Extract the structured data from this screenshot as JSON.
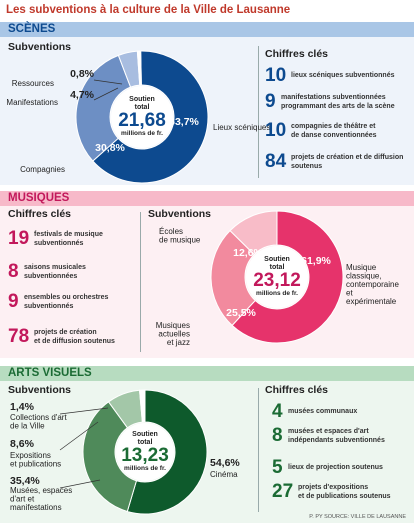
{
  "title": "Les subventions à la culture de la Ville de Lausanne",
  "source": "P. PY SOURCE: VILLE DE LAUSANNE",
  "labels": {
    "subventions": "Subventions",
    "chiffres": "Chiffres clés",
    "center_line1": "Soutien",
    "center_line2": "total",
    "unit": "millions de fr."
  },
  "colors": {
    "scenes_band": "#a9c6e6",
    "scenes_text": "#0d4a8f",
    "scenes_bg": "#eef3fa",
    "musiques_band": "#f7b9c9",
    "musiques_text": "#c2185b",
    "musiques_bg": "#fdf0f3",
    "arts_band": "#b7dcc0",
    "arts_text": "#1b6b34",
    "arts_bg": "#edf6ef"
  },
  "sections": {
    "scenes": {
      "name": "SCÈNES",
      "stats": [
        {
          "num": "10",
          "text": "lieux scéniques subventionnés"
        },
        {
          "num": "9",
          "text": "manifestations subventionnées\nprogrammant des arts de la scène"
        },
        {
          "num": "10",
          "text": "compagnies de théâtre et\nde danse conventionnées"
        },
        {
          "num": "84",
          "text": "projets de création et de diffusion\nsoutenus"
        }
      ]
    },
    "musiques": {
      "name": "MUSIQUES",
      "stats": [
        {
          "num": "19",
          "text": "festivals de musique\nsubventionnés"
        },
        {
          "num": "8",
          "text": "saisons musicales\nsubventionnées"
        },
        {
          "num": "9",
          "text": "ensembles ou orchestres\nsubventionnés"
        },
        {
          "num": "78",
          "text": "projets de création\net de diffusion soutenus"
        }
      ]
    },
    "arts": {
      "name": "ARTS VISUELS",
      "stats": [
        {
          "num": "4",
          "text": "musées communaux"
        },
        {
          "num": "8",
          "text": "musées et espaces d'art\nindépendants subventionnés"
        },
        {
          "num": "5",
          "text": "lieux de projection soutenus"
        },
        {
          "num": "27",
          "text": "projets d'expositions\net de publications soutenus"
        }
      ]
    }
  },
  "chart_data": [
    {
      "type": "pie",
      "section": "SCÈNES",
      "center_value": "21,68",
      "categories": [
        "Lieux scéniques",
        "Compagnies",
        "Manifestations",
        "Ressources"
      ],
      "values": [
        63.7,
        30.8,
        4.7,
        0.8
      ],
      "value_labels": [
        "63,7%",
        "30,8%",
        "4,7%",
        "0,8%"
      ],
      "colors": [
        "#0d4a8f",
        "#6d8fc4",
        "#a8bde0",
        "#ffffff"
      ]
    },
    {
      "type": "pie",
      "section": "MUSIQUES",
      "center_value": "23,12",
      "categories": [
        "Musique\nclassique,\ncontemporaine\net\nexpérimentale",
        "Musiques\nactuelles\net jazz",
        "Écoles\nde musique"
      ],
      "values": [
        61.9,
        25.5,
        12.6
      ],
      "value_labels": [
        "61,9%",
        "25,5%",
        "12,6%"
      ],
      "colors": [
        "#e6336b",
        "#f28a9e",
        "#f8bcc8"
      ]
    },
    {
      "type": "pie",
      "section": "ARTS VISUELS",
      "center_value": "13,23",
      "categories": [
        "Cinéma",
        "Musées, espaces\nd'art et\nmanifestations",
        "Expositions\net publications",
        "Collections d'art\nde la Ville"
      ],
      "values": [
        54.6,
        35.4,
        8.6,
        1.4
      ],
      "value_labels": [
        "54,6%",
        "35,4%",
        "8,6%",
        "1,4%"
      ],
      "colors": [
        "#0e5a2c",
        "#4f8a5a",
        "#a3c7a8",
        "#ffffff"
      ]
    }
  ]
}
